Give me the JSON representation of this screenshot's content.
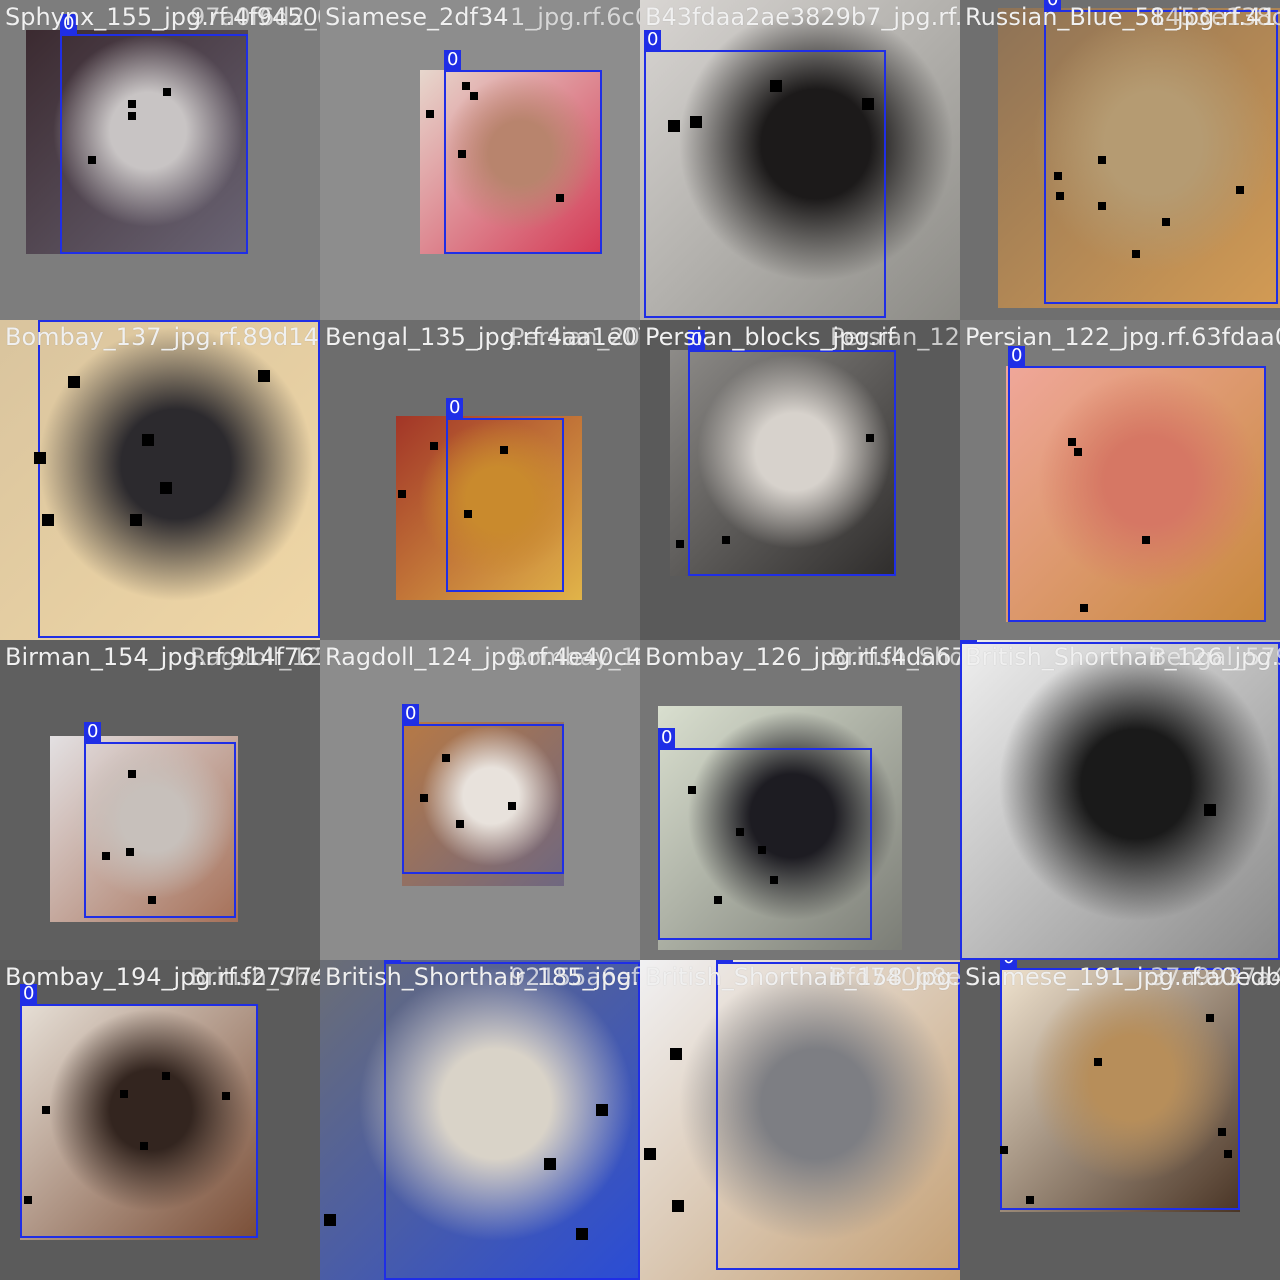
{
  "bbox_color": "#1f2ee6",
  "class_label": "0",
  "tiles": [
    {
      "titles": [
        "Sphynx_155_jpg.rf.4f945065",
        "97a0f6d2_0f01_jpg.rf.6c0a50"
      ],
      "bg": "#7d7d7d",
      "photo": {
        "colors": [
          "#3b2a30",
          "#c8c4c4",
          "#6a6474"
        ]
      }
    },
    {
      "titles": [
        "Siamese_2df34",
        "1_jpg.rf.6c0a504"
      ],
      "bg": "#8d8d8d",
      "photo": {
        "colors": [
          "#e7d7cd",
          "#b8846d",
          "#d43a56"
        ]
      }
    },
    {
      "titles": [
        "B43fdaa2ae3829b7_jpg.rf.1e3e69b"
      ],
      "bg": "#858585",
      "photo": {
        "colors": [
          "#d9d6d3",
          "#1c1a1a",
          "#8c8b86"
        ]
      }
    },
    {
      "titles": [
        "Russian_Blue_58_jpg.rf.41",
        "1453e138c6bb"
      ],
      "bg": "#6f6f6f",
      "photo": {
        "colors": [
          "#8d7256",
          "#b59b72",
          "#d39b54"
        ]
      }
    },
    {
      "titles": [
        "Bombay_137_jpg.rf.89d14785376d135179a932f752e63"
      ],
      "bg": "#5f5f5f",
      "photo": {
        "colors": [
          "#d9c49e",
          "#2c2a2e",
          "#f0d7a6"
        ]
      }
    },
    {
      "titles": [
        "Bengal_135_jpg.rf.4aa1e07f1ec0",
        "Persian_202_jpg.rf.2e35eed2"
      ],
      "bg": "#6d6d6d",
      "photo": {
        "colors": [
          "#a23527",
          "#c98a2d",
          "#e1b449"
        ]
      }
    },
    {
      "titles": [
        "Persian_blocks_jpg.rf",
        "Persian_122_jpg.rf.63fdaa0"
      ],
      "bg": "#5a5a5a",
      "photo": {
        "colors": [
          "#8d8b88",
          "#d7d2cc",
          "#2f2d2c"
        ]
      }
    },
    {
      "titles": [
        "Persian_122_jpg.rf.63fdaa0"
      ],
      "bg": "#7a7a7a",
      "photo": {
        "colors": [
          "#f0a79a",
          "#d67764",
          "#c8893d"
        ]
      }
    },
    {
      "titles": [
        "Birman_154_jpg.rf.914f767c",
        "Ragdoll_124_jpg.rf.4e40c4e"
      ],
      "bg": "#5f5f5f",
      "photo": {
        "colors": [
          "#e3e0e2",
          "#c7c0bb",
          "#a67058"
        ]
      }
    },
    {
      "titles": [
        "Ragdoll_124_jpg.rf.4e40c4e",
        "Bombay_126_jpg.rf.f4da67"
      ],
      "bg": "#8c8c8c",
      "photo": {
        "colors": [
          "#b77945",
          "#e8e2dc",
          "#6f6780"
        ]
      }
    },
    {
      "titles": [
        "Bombay_126_jpg.rf.f4da672",
        "British_Shorthair_126_jpg.rf"
      ],
      "bg": "#767676",
      "photo": {
        "colors": [
          "#d9dfcf",
          "#1d1c22",
          "#7b7d76"
        ]
      }
    },
    {
      "titles": [
        "British_Shorthair_126_jpg.rf",
        "Bengal_5795_jpg.rf"
      ],
      "bg": "#2a2a2a",
      "photo": {
        "colors": [
          "#efefef",
          "#1a1a1a",
          "#8a8a8a"
        ]
      }
    },
    {
      "titles": [
        "Bombay_194_jpg.rf.f27774b",
        "British_Shorthair_185_jpg.rf"
      ],
      "bg": "#5b5b5b",
      "photo": {
        "colors": [
          "#e6dfd6",
          "#33251f",
          "#7a4e37"
        ]
      }
    },
    {
      "titles": [
        "British_Shorthair_185_jpg.rf",
        "92155a6ef4811"
      ],
      "bg": "#707070",
      "photo": {
        "colors": [
          "#6b6e75",
          "#d9d3c8",
          "#2a4cd6"
        ]
      }
    },
    {
      "titles": [
        "British_Shorthair_158_jpg.rf",
        "Bfd740b8ed90"
      ],
      "bg": "#e8e8e8",
      "photo": {
        "colors": [
          "#f1f1f3",
          "#7d7e83",
          "#c49f73"
        ]
      }
    },
    {
      "titles": [
        "Siamese_191_jpg.rf.a0edb3",
        "37a9937a44"
      ],
      "bg": "#5e5e5e",
      "photo": {
        "colors": [
          "#f0e3cf",
          "#b78e5a",
          "#4a3526"
        ]
      }
    }
  ]
}
